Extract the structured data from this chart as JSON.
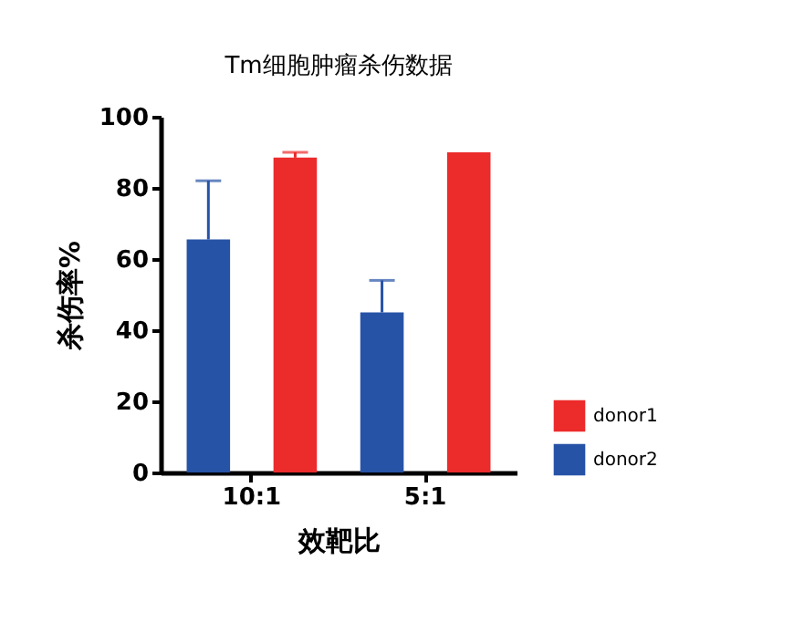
{
  "chart_data": {
    "type": "bar",
    "title": "Tm细胞肿瘤杀伤数据",
    "xlabel": "效靶比",
    "ylabel": "杀伤率%",
    "categories": [
      "10:1",
      "5:1"
    ],
    "series": [
      {
        "name": "donor2",
        "color": "#2653a6",
        "values": [
          65.5,
          45
        ],
        "errors": [
          [
            65.5,
            82
          ],
          [
            45,
            54
          ]
        ]
      },
      {
        "name": "donor1",
        "color": "#ec2b2b",
        "values": [
          88.5,
          90
        ],
        "errors": [
          [
            88.5,
            90
          ],
          null
        ]
      }
    ],
    "ylim": [
      0,
      100
    ],
    "yticks": [
      0,
      20,
      40,
      60,
      80,
      100
    ],
    "grid": false,
    "legend": "right"
  }
}
